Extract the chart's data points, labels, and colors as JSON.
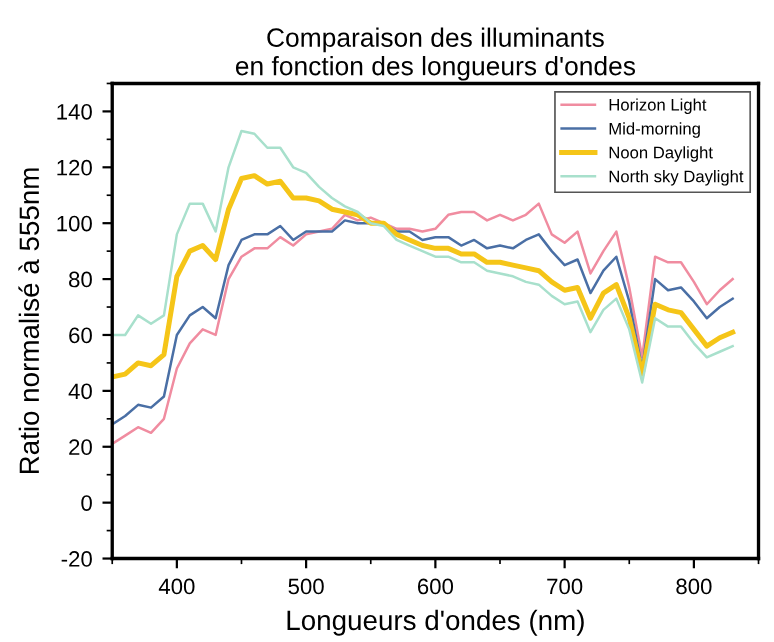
{
  "chart_data": {
    "type": "line",
    "title": "Comparaison des illuminants\nen fonction des longueurs d'ondes",
    "xlabel": "Longueurs d'ondes (nm)",
    "ylabel": "Ratio normalisé à 555nm",
    "x": [
      350,
      360,
      370,
      380,
      390,
      400,
      410,
      420,
      430,
      440,
      450,
      460,
      470,
      480,
      490,
      500,
      510,
      520,
      530,
      540,
      550,
      560,
      570,
      580,
      590,
      600,
      610,
      620,
      630,
      640,
      650,
      660,
      670,
      680,
      690,
      700,
      710,
      720,
      730,
      740,
      750,
      760,
      770,
      780,
      790,
      800,
      810,
      820,
      830
    ],
    "series": [
      {
        "name": "Horizon Light",
        "color": "#f08ca0",
        "values": [
          21,
          24,
          27,
          25,
          30,
          48,
          57,
          62,
          60,
          80,
          88,
          91,
          91,
          95,
          92,
          96,
          97,
          98,
          103,
          101,
          102,
          100,
          98,
          98,
          97,
          98,
          103,
          104,
          104,
          101,
          103,
          101,
          103,
          107,
          96,
          93,
          97,
          82,
          90,
          97,
          77,
          52,
          88,
          86,
          86,
          79,
          71,
          76,
          80
        ]
      },
      {
        "name": "Mid-morning",
        "color": "#4a6fa5",
        "values": [
          28,
          31,
          35,
          34,
          38,
          60,
          67,
          70,
          66,
          85,
          94,
          96,
          96,
          99,
          94,
          97,
          97,
          97,
          101,
          100,
          100,
          100,
          97,
          97,
          94,
          95,
          95,
          92,
          94,
          91,
          92,
          91,
          94,
          96,
          90,
          85,
          87,
          75,
          83,
          88,
          72,
          48,
          80,
          76,
          77,
          72,
          66,
          70,
          73
        ]
      },
      {
        "name": "Noon Daylight",
        "color": "#f5c518",
        "values": [
          45,
          46,
          50,
          49,
          53,
          81,
          90,
          92,
          87,
          105,
          116,
          117,
          114,
          115,
          109,
          109,
          108,
          105,
          104,
          103,
          100,
          100,
          96,
          94,
          92,
          91,
          91,
          89,
          89,
          86,
          86,
          85,
          84,
          83,
          79,
          76,
          77,
          66,
          75,
          78,
          66,
          46,
          71,
          69,
          68,
          62,
          56,
          59,
          61
        ]
      },
      {
        "name": "North sky Daylight",
        "color": "#a8e0cc",
        "values": [
          60,
          60,
          67,
          64,
          67,
          96,
          107,
          107,
          97,
          120,
          133,
          132,
          127,
          127,
          120,
          118,
          113,
          109,
          106,
          104,
          100,
          99,
          94,
          92,
          90,
          88,
          88,
          86,
          86,
          83,
          82,
          81,
          79,
          78,
          74,
          71,
          72,
          61,
          69,
          73,
          62,
          43,
          66,
          63,
          63,
          57,
          52,
          54,
          56
        ]
      }
    ],
    "xlim": [
      350,
      850
    ],
    "ylim": [
      -20,
      150
    ],
    "xticks": [
      400,
      500,
      600,
      700,
      800
    ],
    "yticks": [
      -20,
      0,
      20,
      40,
      60,
      80,
      100,
      120,
      140
    ],
    "grid": false,
    "legend": "top right"
  }
}
